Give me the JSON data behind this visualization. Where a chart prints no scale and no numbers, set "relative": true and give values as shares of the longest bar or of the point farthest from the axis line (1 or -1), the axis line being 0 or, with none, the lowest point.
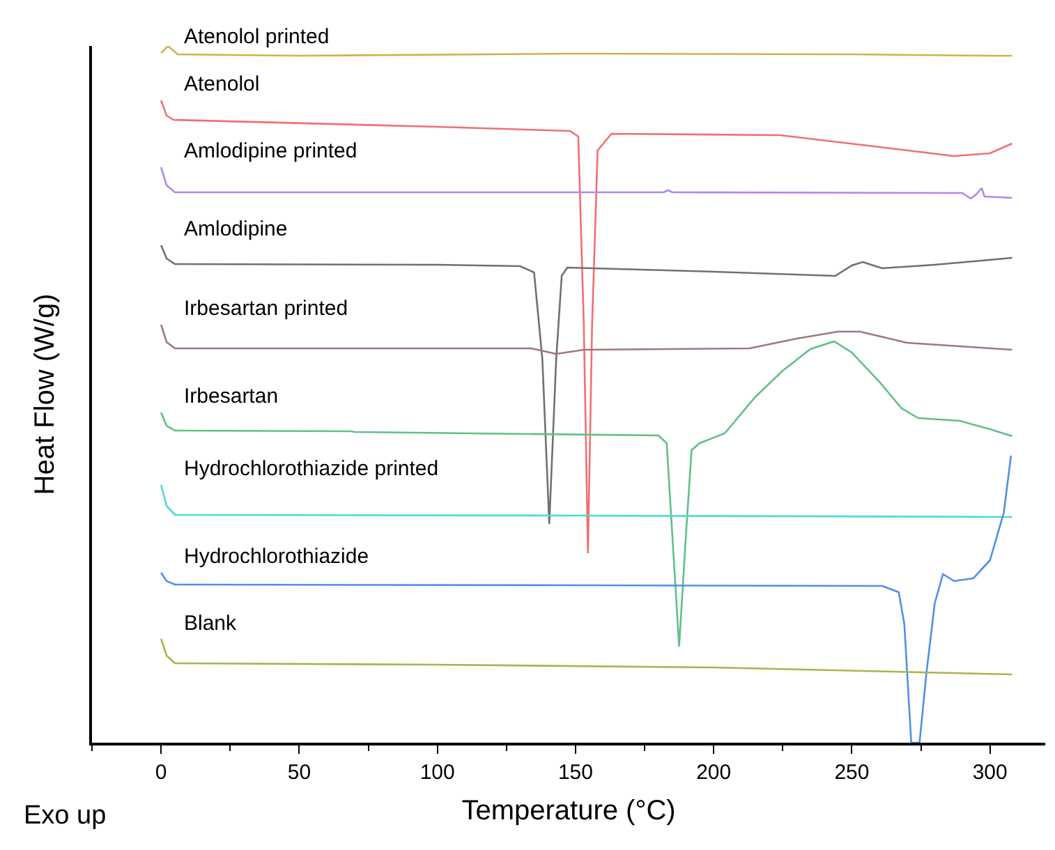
{
  "chart_data": {
    "type": "line",
    "relative": true,
    "xlabel": "Temperature (°C)",
    "ylabel": "Heat Flow (W/g)",
    "annotations": [
      "Exo up"
    ],
    "xlim": [
      -25,
      320
    ],
    "xticks": [
      {
        "value": -25,
        "label": null
      },
      0,
      {
        "value": 25,
        "label": null
      },
      50,
      {
        "value": 75,
        "label": null
      },
      100,
      {
        "value": 125,
        "label": null
      },
      150,
      {
        "value": 175,
        "label": null
      },
      200,
      {
        "value": 225,
        "label": null
      },
      250,
      {
        "value": 275,
        "label": null
      },
      300
    ],
    "legend": false,
    "marker": "none",
    "line_style": "solid",
    "series": [
      {
        "name": "Atenolol printed",
        "color": "#d4b04a",
        "x": [
          0,
          2.5,
          6,
          50,
          150,
          250,
          300,
          308
        ],
        "values": [
          0.99,
          1.0,
          0.988,
          0.986,
          0.989,
          0.988,
          0.986,
          0.986
        ]
      },
      {
        "name": "Atenolol",
        "color": "#f07070",
        "x": [
          0,
          2,
          4.5,
          100,
          148,
          151,
          153,
          154.5,
          156,
          158,
          163,
          224,
          260,
          287,
          300,
          308
        ],
        "values": [
          0.922,
          0.9,
          0.894,
          0.884,
          0.878,
          0.87,
          0.6,
          0.272,
          0.6,
          0.85,
          0.874,
          0.872,
          0.855,
          0.842,
          0.846,
          0.86
        ]
      },
      {
        "name": "Amlodipine printed",
        "color": "#b088e8",
        "x": [
          0,
          2,
          5,
          100,
          182,
          183.5,
          185,
          290,
          293,
          295,
          297,
          298,
          308
        ],
        "values": [
          0.826,
          0.8,
          0.79,
          0.79,
          0.79,
          0.793,
          0.79,
          0.789,
          0.781,
          0.787,
          0.796,
          0.784,
          0.782
        ]
      },
      {
        "name": "Amlodipine",
        "color": "#707070",
        "x": [
          0,
          2,
          5,
          100,
          130,
          135,
          138,
          140.5,
          143,
          145,
          147,
          200,
          244,
          250,
          254,
          257,
          261,
          280,
          300,
          308
        ],
        "values": [
          0.714,
          0.695,
          0.687,
          0.686,
          0.684,
          0.675,
          0.55,
          0.314,
          0.55,
          0.67,
          0.682,
          0.676,
          0.67,
          0.685,
          0.69,
          0.686,
          0.681,
          0.686,
          0.693,
          0.696
        ]
      },
      {
        "name": "Irbesartan printed",
        "color": "#a07878",
        "x": [
          0,
          2,
          5,
          100,
          134,
          143,
          153,
          213,
          230,
          245,
          253,
          270,
          308
        ],
        "values": [
          0.6,
          0.575,
          0.566,
          0.566,
          0.566,
          0.558,
          0.564,
          0.566,
          0.58,
          0.59,
          0.59,
          0.574,
          0.564
        ]
      },
      {
        "name": "Irbesartan",
        "color": "#60c088",
        "x": [
          0,
          2,
          5,
          69,
          70,
          180,
          183,
          185,
          187.5,
          190,
          192,
          195,
          204,
          215,
          225,
          235,
          243.6,
          250,
          260,
          268,
          274,
          289,
          300,
          308
        ],
        "values": [
          0.474,
          0.455,
          0.448,
          0.447,
          0.446,
          0.441,
          0.43,
          0.3,
          0.138,
          0.3,
          0.42,
          0.43,
          0.444,
          0.496,
          0.534,
          0.565,
          0.576,
          0.56,
          0.518,
          0.48,
          0.466,
          0.462,
          0.45,
          0.44
        ]
      },
      {
        "name": "Hydrochlorothiazide printed",
        "color": "#50d8d8",
        "x": [
          0,
          2,
          5,
          150,
          308
        ],
        "values": [
          0.37,
          0.34,
          0.327,
          0.326,
          0.324
        ]
      },
      {
        "name": "Hydrochlorothiazide",
        "color": "#5090e8",
        "x": [
          0,
          2,
          5,
          150,
          261,
          267,
          269,
          271.5,
          274.5,
          277,
          280,
          283,
          287,
          294,
          300,
          302.5,
          305,
          307.6
        ],
        "values": [
          0.244,
          0.232,
          0.227,
          0.226,
          0.225,
          0.216,
          0.17,
          0.0,
          0.0,
          0.1,
          0.2,
          0.242,
          0.232,
          0.236,
          0.262,
          0.296,
          0.33,
          0.412
        ]
      },
      {
        "name": "Blank",
        "color": "#b0b050",
        "x": [
          0,
          2,
          5,
          100,
          200,
          308
        ],
        "values": [
          0.149,
          0.125,
          0.114,
          0.112,
          0.108,
          0.098
        ]
      }
    ]
  }
}
